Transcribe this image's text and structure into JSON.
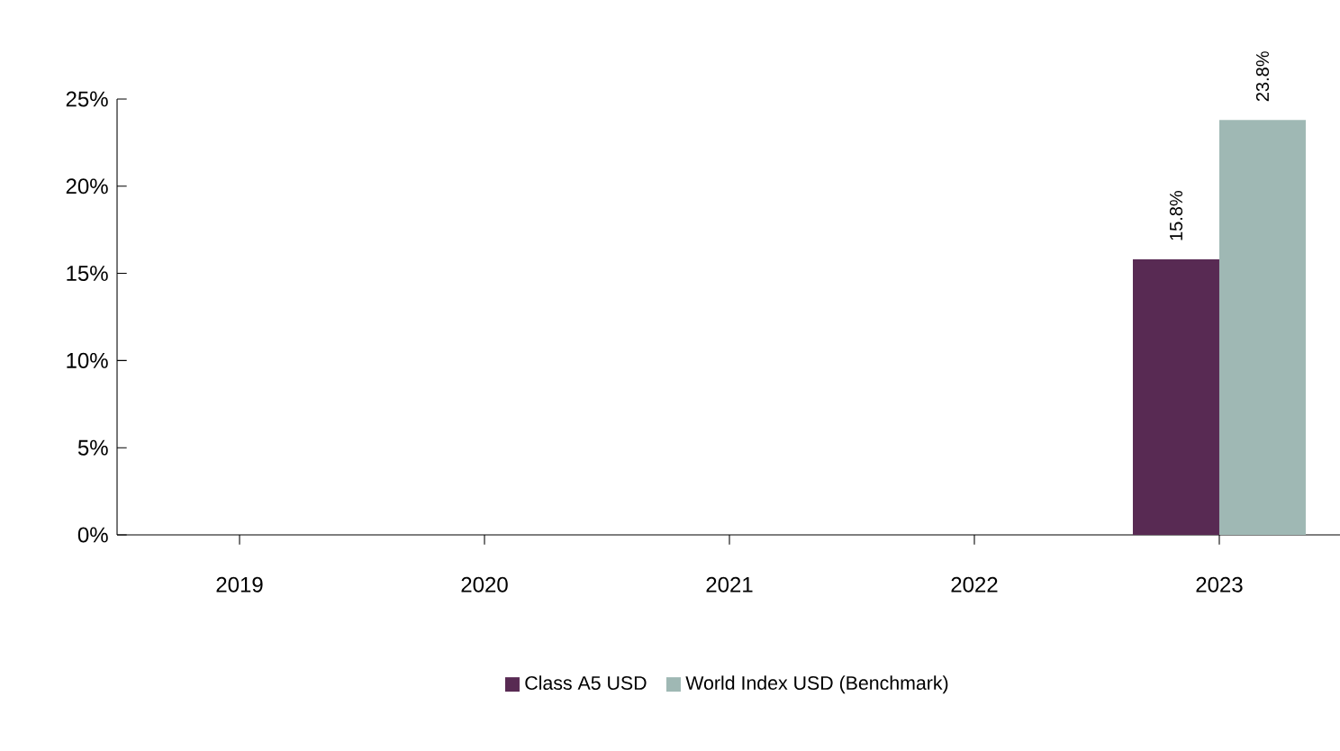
{
  "chart_data": {
    "type": "bar",
    "categories": [
      "2019",
      "2020",
      "2021",
      "2022",
      "2023"
    ],
    "series": [
      {
        "name": "Class A5 USD",
        "color": "#582a53",
        "values": [
          null,
          null,
          null,
          null,
          15.8
        ],
        "value_labels": [
          null,
          null,
          null,
          null,
          "15.8%"
        ]
      },
      {
        "name": "World Index USD (Benchmark)",
        "color": "#9fb8b4",
        "values": [
          null,
          null,
          null,
          null,
          23.8
        ],
        "value_labels": [
          null,
          null,
          null,
          null,
          "23.8%"
        ]
      }
    ],
    "ylim": [
      0,
      25
    ],
    "yticks": [
      {
        "value": 0,
        "label": "0%"
      },
      {
        "value": 5,
        "label": "5%"
      },
      {
        "value": 10,
        "label": "10%"
      },
      {
        "value": 15,
        "label": "15%"
      },
      {
        "value": 20,
        "label": "20%"
      },
      {
        "value": 25,
        "label": "25%"
      }
    ],
    "grid": false,
    "legend": "bottom"
  }
}
